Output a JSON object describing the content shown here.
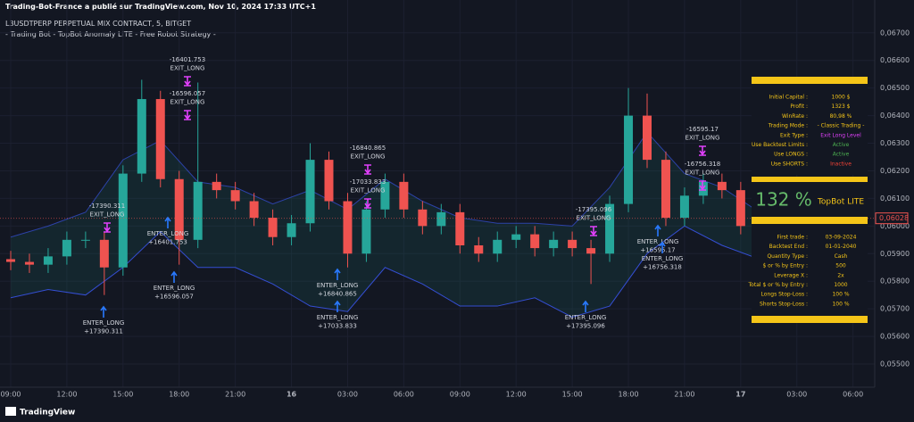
{
  "header": {
    "published": "Trading-Bot-France a publié sur TradingView.com, Nov 10, 2024 17:33 UTC+1",
    "symbol": "L3USDTPERP PERPETUAL MIX CONTRACT, 5, BITGET",
    "strategy": "- Trading Bot - TopBot Anomaly LITE - Free Robot Strategy -"
  },
  "chart_data": {
    "type": "candlestick",
    "x": [
      0,
      1,
      2,
      3,
      4,
      5,
      6,
      7,
      8,
      9,
      10,
      11,
      12,
      13,
      14,
      15,
      16,
      17,
      18,
      19,
      20,
      21,
      22,
      23,
      24,
      25,
      26,
      27,
      28,
      29,
      30,
      31,
      32,
      33,
      34,
      35,
      36,
      37,
      38,
      39
    ],
    "open": [
      0.0588,
      0.0587,
      0.0586,
      0.0589,
      0.0595,
      0.0595,
      0.0585,
      0.0619,
      0.0646,
      0.0617,
      0.0595,
      0.0616,
      0.0613,
      0.0609,
      0.0603,
      0.0596,
      0.0601,
      0.0624,
      0.0609,
      0.059,
      0.0606,
      0.0616,
      0.0606,
      0.06,
      0.0605,
      0.0593,
      0.059,
      0.0595,
      0.0597,
      0.0592,
      0.0595,
      0.0592,
      0.059,
      0.0608,
      0.064,
      0.0624,
      0.0603,
      0.0611,
      0.0616,
      0.0613
    ],
    "high": [
      0.0591,
      0.059,
      0.0592,
      0.0598,
      0.0598,
      0.0598,
      0.0622,
      0.0653,
      0.0649,
      0.062,
      0.0652,
      0.0619,
      0.0616,
      0.0612,
      0.0606,
      0.0604,
      0.063,
      0.0627,
      0.0612,
      0.0609,
      0.0619,
      0.0619,
      0.0609,
      0.0608,
      0.0608,
      0.0596,
      0.0598,
      0.06,
      0.06,
      0.0598,
      0.0598,
      0.0595,
      0.0611,
      0.065,
      0.0648,
      0.0627,
      0.0614,
      0.0619,
      0.0619,
      0.0616
    ],
    "low": [
      0.0584,
      0.0583,
      0.0583,
      0.0586,
      0.0592,
      0.0575,
      0.0582,
      0.0616,
      0.0614,
      0.0586,
      0.0592,
      0.061,
      0.0606,
      0.06,
      0.0593,
      0.0593,
      0.0598,
      0.0606,
      0.0585,
      0.0587,
      0.0603,
      0.0603,
      0.0597,
      0.0597,
      0.059,
      0.0587,
      0.0587,
      0.0592,
      0.0589,
      0.0589,
      0.0589,
      0.0579,
      0.0587,
      0.0605,
      0.0621,
      0.06,
      0.06,
      0.0608,
      0.061,
      0.0597
    ],
    "close": [
      0.0587,
      0.0586,
      0.0589,
      0.0595,
      0.0595,
      0.0585,
      0.0619,
      0.0646,
      0.0617,
      0.0595,
      0.0616,
      0.0613,
      0.0609,
      0.0603,
      0.0596,
      0.0601,
      0.0624,
      0.0609,
      0.059,
      0.0606,
      0.0616,
      0.0606,
      0.06,
      0.0605,
      0.0593,
      0.059,
      0.0595,
      0.0597,
      0.0592,
      0.0595,
      0.0592,
      0.059,
      0.0608,
      0.064,
      0.0624,
      0.0603,
      0.0611,
      0.0616,
      0.0613,
      0.06
    ],
    "up_color": "#26a69a",
    "down_color": "#ef5350",
    "bands": {
      "x": [
        0,
        2,
        4,
        6,
        8,
        10,
        12,
        14,
        16,
        18,
        20,
        22,
        24,
        26,
        28,
        30,
        32,
        34,
        36,
        38,
        40
      ],
      "upper": [
        0.0596,
        0.06,
        0.0605,
        0.0624,
        0.0631,
        0.0616,
        0.0614,
        0.0608,
        0.0613,
        0.0606,
        0.0617,
        0.0609,
        0.0603,
        0.0601,
        0.0601,
        0.06,
        0.0614,
        0.0634,
        0.0619,
        0.0614,
        0.0605
      ],
      "lower": [
        0.0574,
        0.0577,
        0.0575,
        0.0585,
        0.0598,
        0.0585,
        0.0585,
        0.0579,
        0.0571,
        0.0569,
        0.0585,
        0.0579,
        0.0571,
        0.0571,
        0.0574,
        0.0567,
        0.0571,
        0.059,
        0.06,
        0.0593,
        0.0588
      ],
      "color": "#3d5afe"
    },
    "xlim": [
      -0.572,
      46.16
    ],
    "xticks": [
      {
        "value": 0,
        "label": "09:00"
      },
      {
        "value": 3,
        "label": "12:00"
      },
      {
        "value": 6,
        "label": "15:00"
      },
      {
        "value": 9,
        "label": "18:00"
      },
      {
        "value": 12,
        "label": "21:00"
      },
      {
        "value": 15,
        "label": "16"
      },
      {
        "value": 18,
        "label": "03:00"
      },
      {
        "value": 21,
        "label": "06:00"
      },
      {
        "value": 24,
        "label": "09:00"
      },
      {
        "value": 27,
        "label": "12:00"
      },
      {
        "value": 30,
        "label": "15:00"
      },
      {
        "value": 33,
        "label": "18:00"
      },
      {
        "value": 36,
        "label": "21:00"
      },
      {
        "value": 39,
        "label": "17"
      },
      {
        "value": 42,
        "label": "03:00"
      },
      {
        "value": 45,
        "label": "06:00"
      }
    ],
    "ylim": [
      0.05416,
      0.06819
    ],
    "yticks": [
      {
        "value": 0.055,
        "label": "0,05500"
      },
      {
        "value": 0.056,
        "label": "0,05600"
      },
      {
        "value": 0.057,
        "label": "0,05700"
      },
      {
        "value": 0.058,
        "label": "0,05800"
      },
      {
        "value": 0.059,
        "label": "0,05900"
      },
      {
        "value": 0.06,
        "label": "0,06000"
      },
      {
        "value": 0.061,
        "label": "0,06100"
      },
      {
        "value": 0.062,
        "label": "0,06200"
      },
      {
        "value": 0.063,
        "label": "0,06300"
      },
      {
        "value": 0.064,
        "label": "0,06400"
      },
      {
        "value": 0.065,
        "label": "0,06500"
      },
      {
        "value": 0.066,
        "label": "0,06600"
      },
      {
        "value": 0.067,
        "label": "0,06700"
      }
    ],
    "last_price": {
      "value": 0.06028,
      "label": "0,06028"
    },
    "grid": true,
    "annotations": [
      {
        "lines": [
          "-16401.753",
          "EXIT_LONG"
        ]
      },
      {
        "lines": [
          "-16596.057",
          "EXIT_LONG"
        ]
      },
      {
        "lines": [
          "-17390.311",
          "EXIT_LONG"
        ]
      },
      {
        "lines": [
          "ENTER_LONG",
          "+16401.753"
        ]
      },
      {
        "lines": [
          "ENTER_LONG",
          "+16596.057"
        ]
      },
      {
        "lines": [
          "ENTER_LONG",
          "+17390.311"
        ]
      },
      {
        "lines": [
          "-16840.865",
          "EXIT_LONG"
        ]
      },
      {
        "lines": [
          "-17033.833",
          "EXIT_LONG"
        ]
      },
      {
        "lines": [
          "ENTER_LONG",
          "+16840.865"
        ]
      },
      {
        "lines": [
          "ENTER_LONG",
          "+17033.833"
        ]
      },
      {
        "lines": [
          "-17395.096",
          "EXIT_LONG"
        ]
      },
      {
        "lines": [
          "ENTER_LONG",
          "+17395.096"
        ]
      },
      {
        "lines": [
          "-16595.17",
          "EXIT_LONG"
        ]
      },
      {
        "lines": [
          "-16756.318",
          "EXIT_LONG"
        ]
      },
      {
        "lines": [
          "ENTER_LONG",
          "+16595.17"
        ]
      },
      {
        "lines": [
          "ENTER_LONG",
          "+16756.318"
        ]
      }
    ]
  },
  "stats_panel": {
    "settings": [
      [
        "Initial Capital :",
        "1000 $"
      ],
      [
        "Profit :",
        "1323 $"
      ],
      [
        "WinRate :",
        "80,98 %"
      ],
      [
        "Trading Mode :",
        "- Classic Trading -"
      ],
      [
        "Exit Type :",
        "Exit Long Level"
      ],
      [
        "Use Backtest Limits :",
        "Active"
      ],
      [
        "Use LONGS :",
        "Active"
      ],
      [
        "Use SHORTS :",
        "Inactive"
      ]
    ],
    "result": "132 %",
    "name": "TopBot LITE",
    "params": [
      [
        "First trade :",
        "03-09-2024"
      ],
      [
        "Backtest End :",
        "01-01-2040"
      ],
      [
        "Quantity Type :",
        "Cash"
      ],
      [
        "$ or % by Entry :",
        "500"
      ],
      [
        "Leverage X :",
        "2x"
      ],
      [
        "Total $ or % by Entry :",
        "1000"
      ],
      [
        "Longs Stop-Loss :",
        "100 %"
      ],
      [
        "Shorts Stop-Loss :",
        "100 %"
      ]
    ]
  },
  "footer": {
    "logo": "TradingView"
  }
}
